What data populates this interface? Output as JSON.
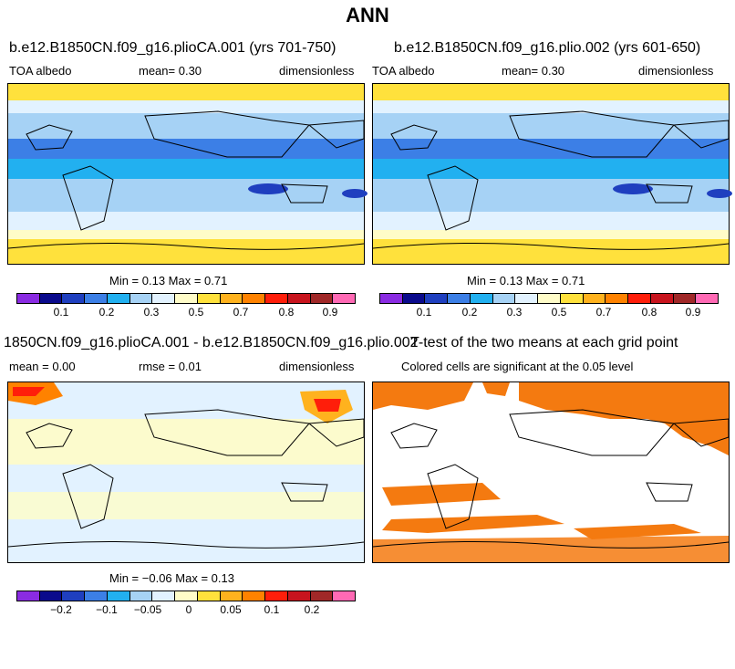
{
  "figure_title": "ANN",
  "panels": [
    {
      "title": "b.e12.B1850CN.f09_g16.plioCA.001 (yrs 701-750)",
      "left_label": "TOA albedo",
      "center_label": "mean=   0.30",
      "right_label": "dimensionless",
      "stats": "Min =   0.13 Max =   0.71",
      "colorbar_ticks": [
        "0.1",
        "0.2",
        "0.3",
        "0.5",
        "0.7",
        "0.8",
        "0.9"
      ]
    },
    {
      "title": "b.e12.B1850CN.f09_g16.plio.002 (yrs 601-650)",
      "left_label": "TOA albedo",
      "center_label": "mean=   0.30",
      "right_label": "dimensionless",
      "stats": "Min =   0.13 Max =   0.71",
      "colorbar_ticks": [
        "0.1",
        "0.2",
        "0.3",
        "0.5",
        "0.7",
        "0.8",
        "0.9"
      ]
    },
    {
      "title": "1850CN.f09_g16.plioCA.001 - b.e12.B1850CN.f09_g16.plio.002",
      "left_label": "mean =   0.00",
      "center_label": "rmse =   0.01",
      "right_label": "dimensionless",
      "stats": "Min =  −0.06 Max =   0.13",
      "colorbar_ticks": [
        "−0.2",
        "−0.1",
        "−0.05",
        "0",
        "0.05",
        "0.1",
        "0.2"
      ]
    },
    {
      "title": "T-test of the two means at each grid point",
      "subtitle": "Colored cells are significant at the 0.05 level"
    }
  ],
  "colors": {
    "colorbar": [
      "#8a2be2",
      "#0a0a8c",
      "#1f3fbf",
      "#3c7fe6",
      "#22b0f0",
      "#a6d2f5",
      "#e2f2ff",
      "#fffcc8",
      "#ffe13c",
      "#ffb21e",
      "#ff8200",
      "#ff1e0a",
      "#c8141e",
      "#a02828",
      "#ff69b4"
    ],
    "land_outline": "#000000",
    "significance": "#f47a10"
  }
}
